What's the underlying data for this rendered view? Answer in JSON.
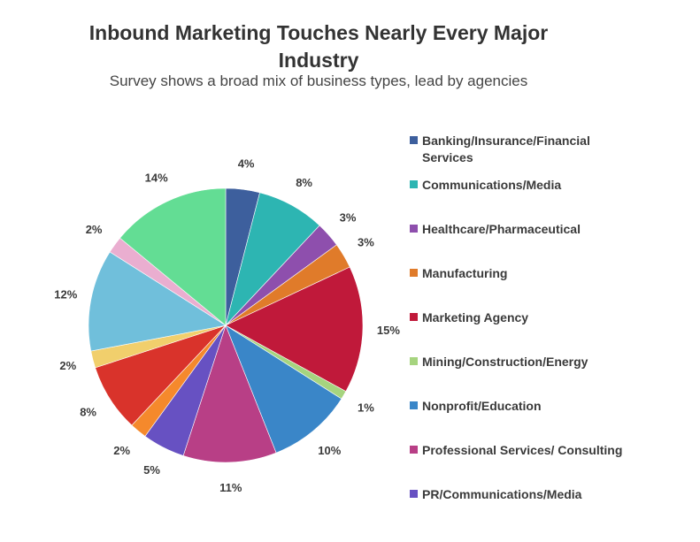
{
  "chart_data": {
    "type": "pie",
    "title": "Inbound Marketing Touches Nearly Every Major Industry",
    "subtitle": "Survey shows a broad mix of business types, lead by agencies",
    "legend_position": "right",
    "start_angle_deg": 0,
    "direction": "clockwise",
    "slices": [
      {
        "label": "Banking/Insurance/Financial Services",
        "value": 4,
        "display": "4%",
        "color": "#3d5f9d",
        "in_legend": true
      },
      {
        "label": "Communications/Media",
        "value": 8,
        "display": "8%",
        "color": "#2db5b2",
        "in_legend": true
      },
      {
        "label": "Healthcare/Pharmaceutical",
        "value": 3,
        "display": "3%",
        "color": "#8e4fad",
        "in_legend": true
      },
      {
        "label": "Manufacturing",
        "value": 3,
        "display": "3%",
        "color": "#e07b2a",
        "in_legend": true
      },
      {
        "label": "Marketing Agency",
        "value": 15,
        "display": "15%",
        "color": "#c0193a",
        "in_legend": true
      },
      {
        "label": "Mining/Construction/Energy",
        "value": 1,
        "display": "1%",
        "color": "#a6d47f",
        "in_legend": true
      },
      {
        "label": "Nonprofit/Education",
        "value": 10,
        "display": "10%",
        "color": "#3a86c8",
        "in_legend": true
      },
      {
        "label": "Professional Services/ Consulting",
        "value": 11,
        "display": "11%",
        "color": "#b83f86",
        "in_legend": true
      },
      {
        "label": "PR/Communications/Media",
        "value": 5,
        "display": "5%",
        "color": "#6751c2",
        "in_legend": true
      },
      {
        "label": "",
        "value": 2,
        "display": "2%",
        "color": "#f5892c",
        "in_legend": false
      },
      {
        "label": "",
        "value": 8,
        "display": "8%",
        "color": "#d9332b",
        "in_legend": false
      },
      {
        "label": "",
        "value": 2,
        "display": "2%",
        "color": "#f1cf6c",
        "in_legend": false
      },
      {
        "label": "",
        "value": 12,
        "display": "12%",
        "color": "#70bfdb",
        "in_legend": false
      },
      {
        "label": "",
        "value": 2,
        "display": "2%",
        "color": "#eaaed0",
        "in_legend": false
      },
      {
        "label": "",
        "value": 14,
        "display": "14%",
        "color": "#63dd94",
        "in_legend": false
      }
    ]
  }
}
